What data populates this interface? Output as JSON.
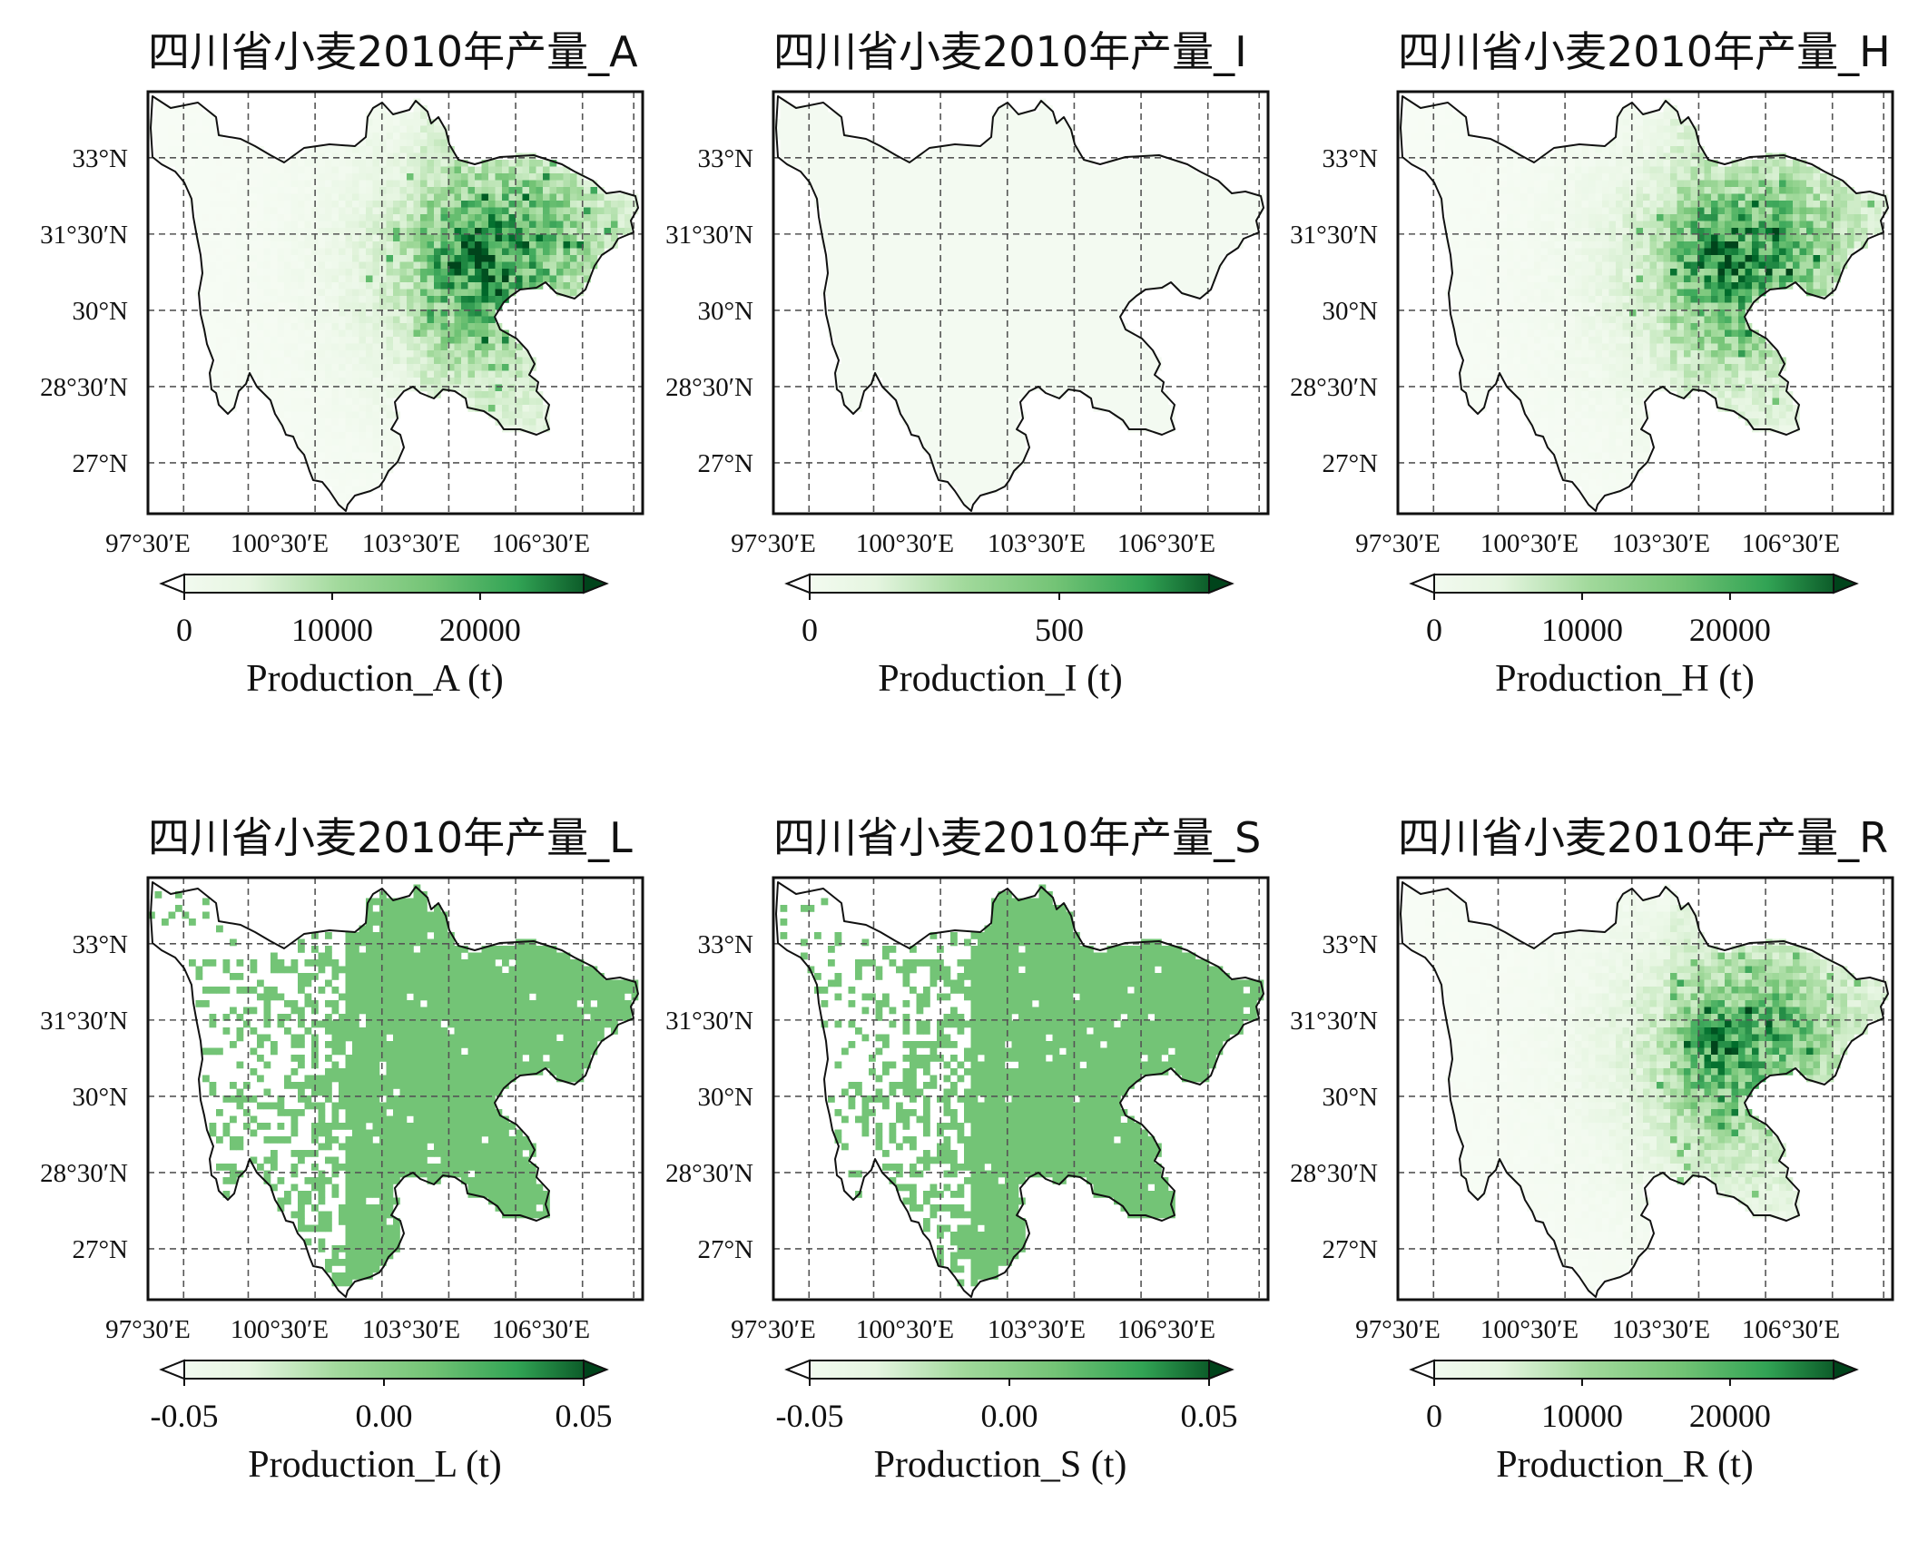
{
  "map_tiles": [
    {
      "title": "四川省小麦2010年产量_A",
      "colorbar_label": "Production_A (t)",
      "colorbar_ticks": [
        "0",
        "10000",
        "20000"
      ],
      "colorbar_tick_values": [
        0,
        10000,
        20000
      ],
      "colorbar_range": [
        0,
        27000
      ],
      "render_style": "sparse-intensity",
      "intensity_scale": 1.0
    },
    {
      "title": "四川省小麦2010年产量_I",
      "colorbar_label": "Production_I (t)",
      "colorbar_ticks": [
        "0",
        "500"
      ],
      "colorbar_tick_values": [
        0,
        500
      ],
      "colorbar_range": [
        0,
        800
      ],
      "render_style": "faint",
      "intensity_scale": 0.15
    },
    {
      "title": "四川省小麦2010年产量_H",
      "colorbar_label": "Production_H (t)",
      "colorbar_ticks": [
        "0",
        "10000",
        "20000"
      ],
      "colorbar_tick_values": [
        0,
        10000,
        20000
      ],
      "colorbar_range": [
        0,
        27000
      ],
      "render_style": "sparse-intensity",
      "intensity_scale": 0.95
    },
    {
      "title": "四川省小麦2010年产量_L",
      "colorbar_label": "Production_L (t)",
      "colorbar_ticks": [
        "-0.05",
        "0.00",
        "0.05"
      ],
      "colorbar_tick_values": [
        -0.05,
        0.0,
        0.05
      ],
      "colorbar_range": [
        -0.05,
        0.05
      ],
      "render_style": "uniform-fill",
      "intensity_scale": 0.5
    },
    {
      "title": "四川省小麦2010年产量_S",
      "colorbar_label": "Production_S (t)",
      "colorbar_ticks": [
        "-0.05",
        "0.00",
        "0.05"
      ],
      "colorbar_tick_values": [
        -0.05,
        0.0,
        0.05
      ],
      "colorbar_range": [
        -0.05,
        0.05
      ],
      "render_style": "uniform-fill",
      "intensity_scale": 0.5
    },
    {
      "title": "四川省小麦2010年产量_R",
      "colorbar_label": "Production_R (t)",
      "colorbar_ticks": [
        "0",
        "10000",
        "20000"
      ],
      "colorbar_tick_values": [
        0,
        10000,
        20000
      ],
      "colorbar_range": [
        0,
        27000
      ],
      "render_style": "sparse-intensity",
      "intensity_scale": 0.85
    }
  ],
  "lon_ticks": [
    "97°30′E",
    "100°30′E",
    "103°30′E",
    "106°30′E"
  ],
  "lat_ticks": [
    "33°N",
    "31°30′N",
    "30°N",
    "28°30′N",
    "27°N"
  ],
  "lon_tick_values": [
    97.5,
    100.5,
    103.5,
    106.5
  ],
  "lat_tick_values": [
    33.0,
    31.5,
    30.0,
    28.5,
    27.0
  ],
  "lon_extent": [
    97.5,
    108.6
  ],
  "lat_extent": [
    26.0,
    34.3
  ],
  "colormap": "Greens",
  "colors": {
    "uniform_fill": "#73c476",
    "faint_fill": "#f3faf1",
    "border": "#111111",
    "grid": "#555555"
  }
}
